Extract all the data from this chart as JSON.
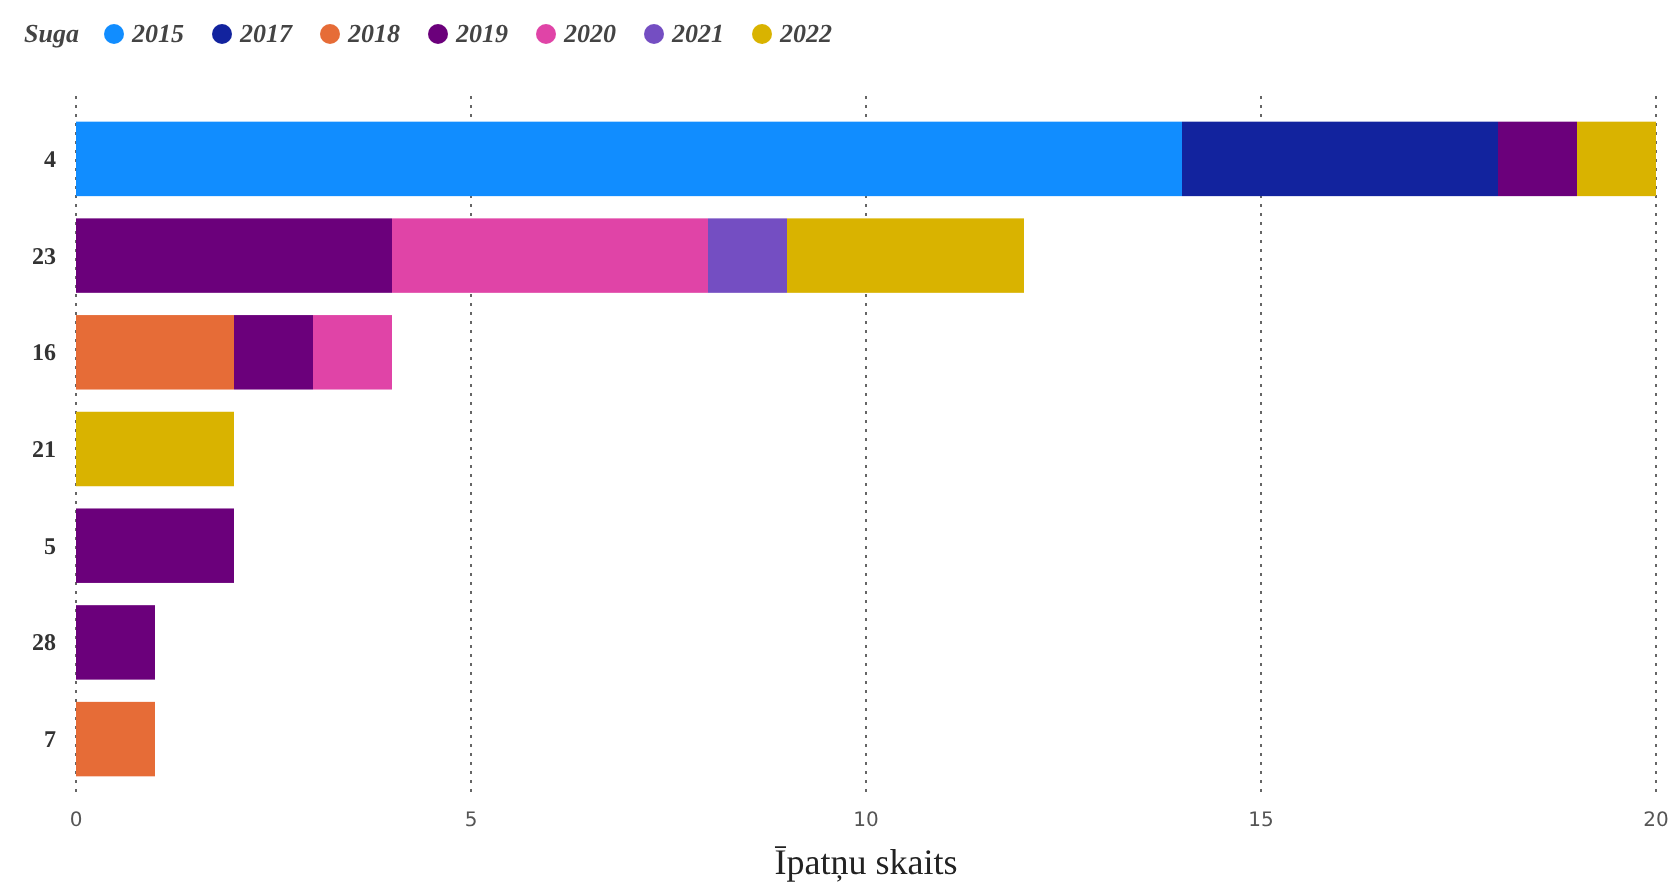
{
  "chart_data": {
    "type": "bar",
    "orientation": "horizontal",
    "stacked": true,
    "legend_title": "Suga",
    "xlabel": "Īpatņu skaits",
    "categories": [
      "4",
      "23",
      "16",
      "21",
      "5",
      "28",
      "7"
    ],
    "series": [
      {
        "name": "2015",
        "color": "#118dff",
        "values": [
          14,
          null,
          null,
          null,
          null,
          null,
          null
        ]
      },
      {
        "name": "2017",
        "color": "#12239e",
        "values": [
          4,
          null,
          null,
          null,
          null,
          null,
          null
        ]
      },
      {
        "name": "2018",
        "color": "#e66c37",
        "values": [
          null,
          null,
          2,
          null,
          null,
          null,
          1
        ]
      },
      {
        "name": "2019",
        "color": "#6b007b",
        "values": [
          1,
          4,
          1,
          null,
          2,
          1,
          null
        ]
      },
      {
        "name": "2020",
        "color": "#e044a7",
        "values": [
          null,
          4,
          1,
          null,
          null,
          null,
          null
        ]
      },
      {
        "name": "2021",
        "color": "#744ec2",
        "values": [
          null,
          1,
          null,
          null,
          null,
          null,
          null
        ]
      },
      {
        "name": "2022",
        "color": "#d9b300",
        "values": [
          1,
          3,
          null,
          2,
          null,
          null,
          null
        ]
      }
    ],
    "xlim": [
      0,
      20
    ],
    "xticks": [
      0,
      5,
      10,
      15,
      20
    ],
    "grid": "x",
    "legend": "top left"
  }
}
